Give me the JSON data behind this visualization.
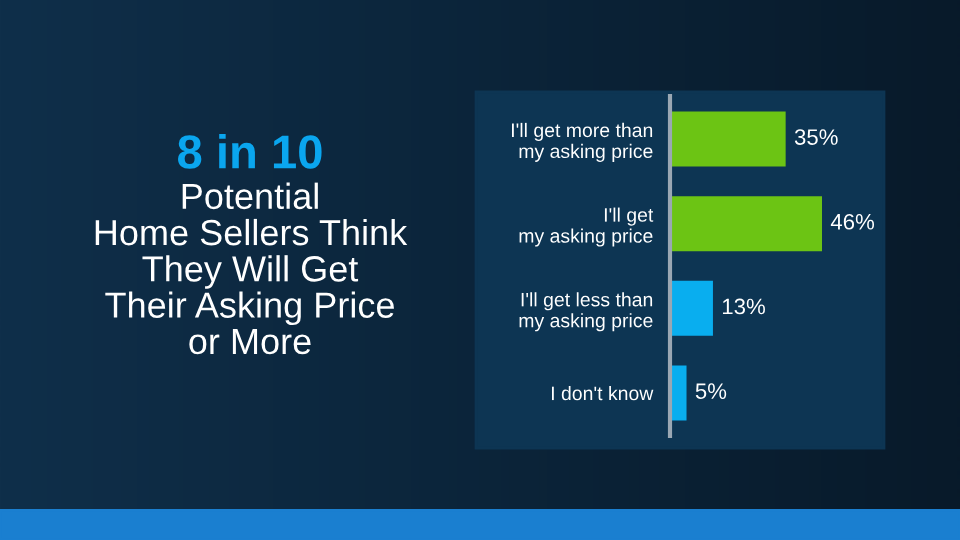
{
  "chart_data": {
    "type": "bar",
    "orientation": "horizontal",
    "title": "8 in 10",
    "subtitle": "Potential\nHome Sellers Think\nThey Will Get\nTheir Asking Price\nor More",
    "categories": [
      "I'll get more than\nmy asking price",
      "I'll get\nmy asking price",
      "I'll get less than\nmy asking price",
      "I don't know"
    ],
    "values": [
      35,
      46,
      13,
      5
    ],
    "colors": [
      "#6cc414",
      "#6cc414",
      "#09aeef",
      "#09aeef"
    ],
    "value_labels": [
      "35%",
      "46%",
      "13%",
      "5%"
    ]
  }
}
